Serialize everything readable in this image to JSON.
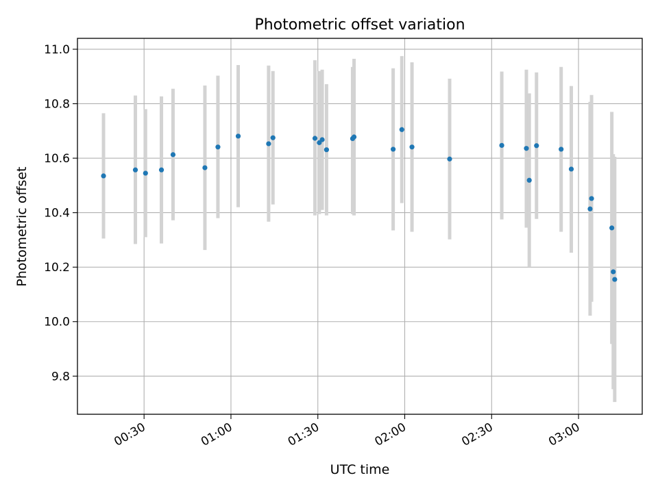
{
  "chart_data": {
    "type": "scatter",
    "title": "Photometric offset variation",
    "xlabel": "UTC time",
    "ylabel": "Photometric offset",
    "xlim": [
      "00:07:00",
      "03:22:00"
    ],
    "ylim": [
      9.66,
      11.04
    ],
    "x_ticks": [
      "00:30",
      "01:00",
      "01:30",
      "02:00",
      "02:30",
      "03:00"
    ],
    "y_ticks": [
      "9.8",
      "10.0",
      "10.2",
      "10.4",
      "10.6",
      "10.8",
      "11.0"
    ],
    "grid": true,
    "legend": "none",
    "marker_color": "#1f77b4",
    "errorbar_color": "#d3d3d3",
    "series": [
      {
        "points": [
          {
            "time": "00:16:00",
            "value": 10.535,
            "err_low": 10.305,
            "err_high": 10.765
          },
          {
            "time": "00:27:00",
            "value": 10.557,
            "err_low": 10.285,
            "err_high": 10.83
          },
          {
            "time": "00:30:30",
            "value": 10.545,
            "err_low": 10.31,
            "err_high": 10.78
          },
          {
            "time": "00:36:00",
            "value": 10.557,
            "err_low": 10.287,
            "err_high": 10.827
          },
          {
            "time": "00:40:00",
            "value": 10.613,
            "err_low": 10.372,
            "err_high": 10.855
          },
          {
            "time": "00:51:00",
            "value": 10.565,
            "err_low": 10.263,
            "err_high": 10.867
          },
          {
            "time": "00:55:30",
            "value": 10.641,
            "err_low": 10.38,
            "err_high": 10.903
          },
          {
            "time": "01:02:30",
            "value": 10.681,
            "err_low": 10.42,
            "err_high": 10.942
          },
          {
            "time": "01:13:00",
            "value": 10.653,
            "err_low": 10.367,
            "err_high": 10.94
          },
          {
            "time": "01:14:30",
            "value": 10.675,
            "err_low": 10.43,
            "err_high": 10.92
          },
          {
            "time": "01:29:00",
            "value": 10.673,
            "err_low": 10.39,
            "err_high": 10.96
          },
          {
            "time": "01:30:30",
            "value": 10.657,
            "err_low": 10.395,
            "err_high": 10.92
          },
          {
            "time": "01:31:30",
            "value": 10.668,
            "err_low": 10.41,
            "err_high": 10.925
          },
          {
            "time": "01:33:00",
            "value": 10.631,
            "err_low": 10.39,
            "err_high": 10.872
          },
          {
            "time": "01:42:00",
            "value": 10.672,
            "err_low": 10.395,
            "err_high": 10.935
          },
          {
            "time": "01:42:30",
            "value": 10.678,
            "err_low": 10.39,
            "err_high": 10.965
          },
          {
            "time": "01:56:00",
            "value": 10.633,
            "err_low": 10.335,
            "err_high": 10.93
          },
          {
            "time": "01:59:00",
            "value": 10.705,
            "err_low": 10.435,
            "err_high": 10.975
          },
          {
            "time": "02:02:30",
            "value": 10.641,
            "err_low": 10.33,
            "err_high": 10.952
          },
          {
            "time": "02:15:30",
            "value": 10.597,
            "err_low": 10.302,
            "err_high": 10.892
          },
          {
            "time": "02:33:30",
            "value": 10.647,
            "err_low": 10.375,
            "err_high": 10.918
          },
          {
            "time": "02:42:00",
            "value": 10.636,
            "err_low": 10.345,
            "err_high": 10.925
          },
          {
            "time": "02:43:00",
            "value": 10.519,
            "err_low": 10.2,
            "err_high": 10.838
          },
          {
            "time": "02:45:30",
            "value": 10.646,
            "err_low": 10.377,
            "err_high": 10.915
          },
          {
            "time": "02:54:00",
            "value": 10.633,
            "err_low": 10.33,
            "err_high": 10.935
          },
          {
            "time": "02:57:30",
            "value": 10.56,
            "err_low": 10.253,
            "err_high": 10.865
          },
          {
            "time": "03:04:00",
            "value": 10.414,
            "err_low": 10.022,
            "err_high": 10.807
          },
          {
            "time": "03:04:30",
            "value": 10.452,
            "err_low": 10.073,
            "err_high": 10.832
          },
          {
            "time": "03:11:30",
            "value": 10.344,
            "err_low": 9.918,
            "err_high": 10.77
          },
          {
            "time": "03:12:00",
            "value": 10.183,
            "err_low": 9.752,
            "err_high": 10.615
          },
          {
            "time": "03:12:30",
            "value": 10.155,
            "err_low": 9.705,
            "err_high": 10.605
          }
        ]
      }
    ]
  }
}
